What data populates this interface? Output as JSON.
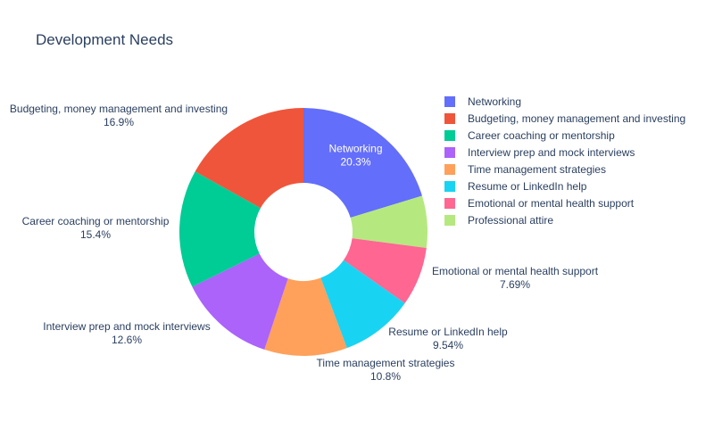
{
  "chart_data": {
    "type": "pie",
    "hole": true,
    "title": "Development Needs",
    "legend_position": "right",
    "slices": [
      {
        "label": "Networking",
        "value": 20.3,
        "value_label": "20.3%",
        "color": "#636efa"
      },
      {
        "label": "Professional attire",
        "value": 6.77,
        "value_label": "",
        "color": "#b6e880"
      },
      {
        "label": "Emotional or mental health support",
        "value": 7.69,
        "value_label": "7.69%",
        "color": "#ff6692"
      },
      {
        "label": "Resume or LinkedIn help",
        "value": 9.54,
        "value_label": "9.54%",
        "color": "#19d3f3"
      },
      {
        "label": "Time management strategies",
        "value": 10.8,
        "value_label": "10.8%",
        "color": "#ffa15a"
      },
      {
        "label": "Interview prep and mock interviews",
        "value": 12.6,
        "value_label": "12.6%",
        "color": "#ab63fa"
      },
      {
        "label": "Career coaching or mentorship",
        "value": 15.4,
        "value_label": "15.4%",
        "color": "#00cc96"
      },
      {
        "label": "Budgeting, money management and investing",
        "value": 16.9,
        "value_label": "16.9%",
        "color": "#ef553b"
      }
    ],
    "legend": [
      "Networking",
      "Budgeting, money management and investing",
      "Career coaching or mentorship",
      "Interview prep and mock interviews",
      "Time management strategies",
      "Resume or LinkedIn help",
      "Emotional or mental health support",
      "Professional attire"
    ]
  }
}
